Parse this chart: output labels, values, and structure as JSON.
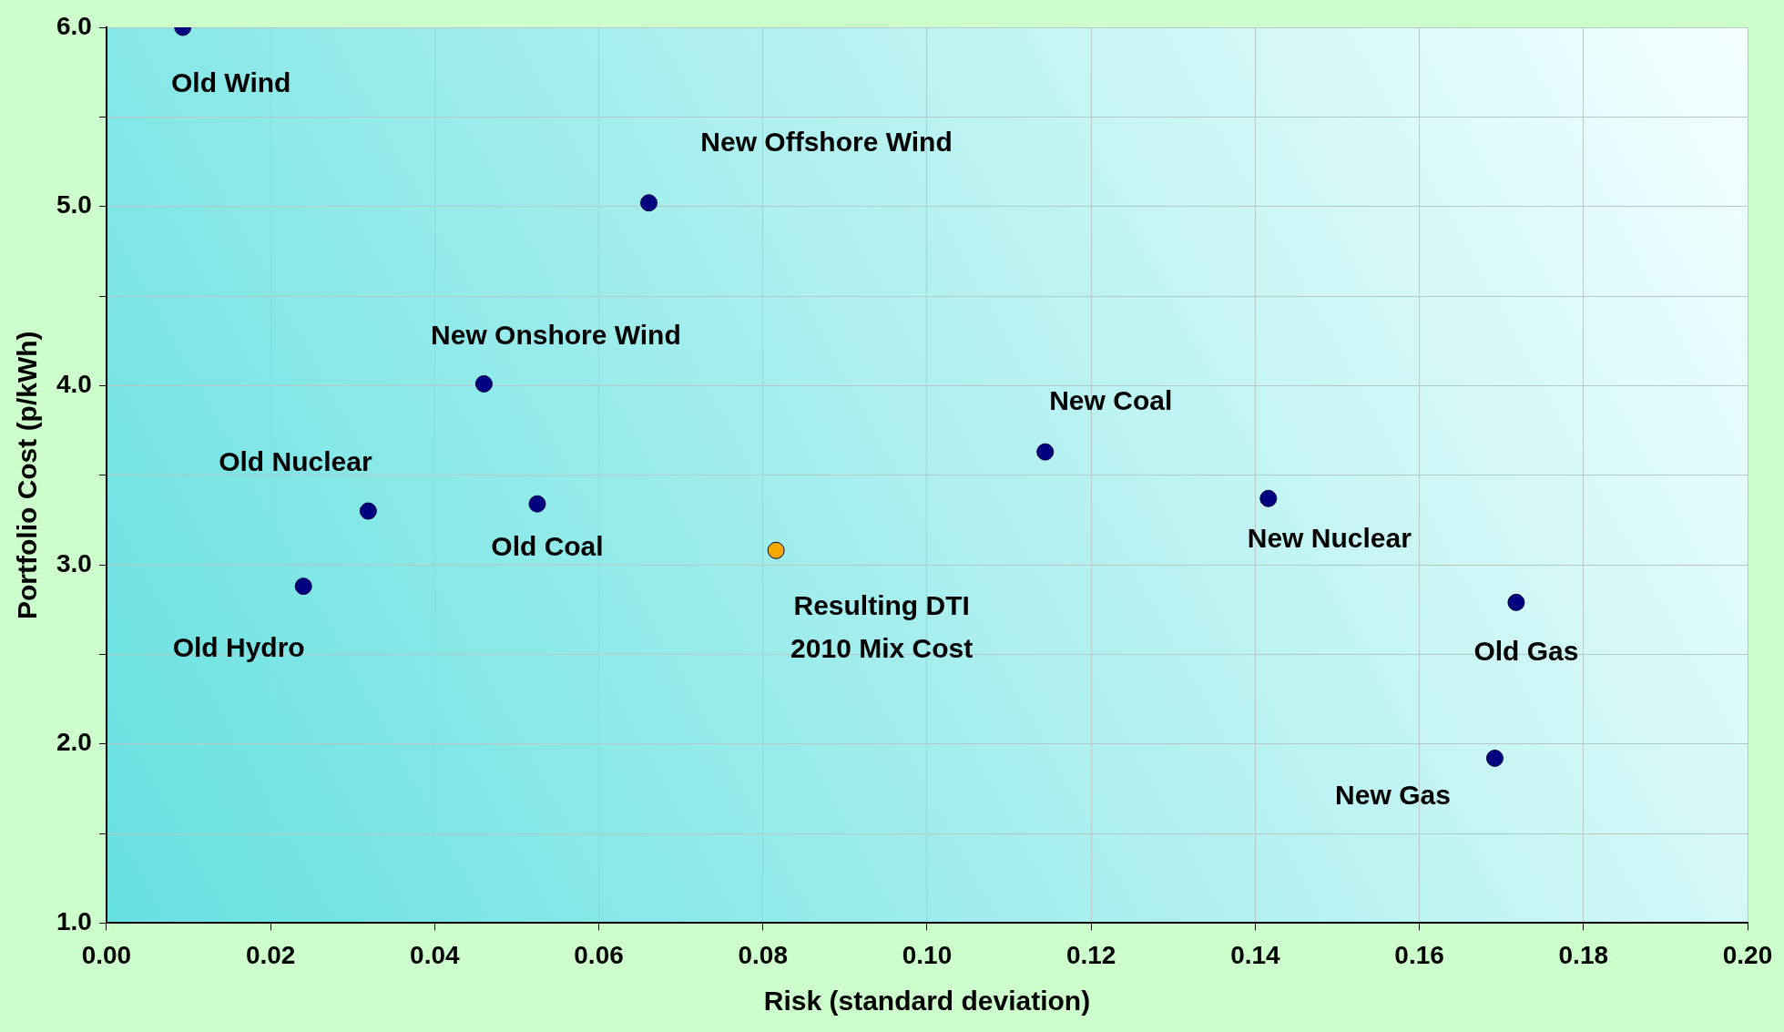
{
  "chart_data": {
    "type": "scatter",
    "xlabel": "Risk (standard deviation)",
    "ylabel": "Portfolio Cost (p/kWh)",
    "series": [
      {
        "color": "#000080",
        "x": [
          0.0093,
          0.0661,
          0.046,
          0.0319,
          0.024,
          0.0525,
          0.1144,
          0.1416,
          0.1718,
          0.1692
        ],
        "values": [
          6.0,
          5.02,
          4.01,
          3.3,
          2.88,
          3.34,
          3.63,
          3.37,
          2.79,
          1.92
        ]
      },
      {
        "color": "#f7a800",
        "x": [
          0.0816
        ],
        "values": [
          3.08
        ]
      }
    ],
    "xlim": [
      0,
      0.2
    ],
    "xticks": [
      {
        "value": 0,
        "label": "0.00"
      },
      {
        "value": 0.02,
        "label": "0.02"
      },
      {
        "value": 0.04,
        "label": "0.04"
      },
      {
        "value": 0.06,
        "label": "0.06"
      },
      {
        "value": 0.08,
        "label": "0.08"
      },
      {
        "value": 0.1,
        "label": "0.10"
      },
      {
        "value": 0.12,
        "label": "0.12"
      },
      {
        "value": 0.14,
        "label": "0.14"
      },
      {
        "value": 0.16,
        "label": "0.16"
      },
      {
        "value": 0.18,
        "label": "0.18"
      },
      {
        "value": 0.2,
        "label": "0.20"
      }
    ],
    "ylim": [
      1,
      6
    ],
    "yticks": [
      {
        "value": 1,
        "label": "1.0"
      },
      {
        "value": 1.5,
        "label": null
      },
      {
        "value": 2,
        "label": "2.0"
      },
      {
        "value": 2.5,
        "label": null
      },
      {
        "value": 3,
        "label": "3.0"
      },
      {
        "value": 3.5,
        "label": null
      },
      {
        "value": 4,
        "label": "4.0"
      },
      {
        "value": 4.5,
        "label": null
      },
      {
        "value": 5,
        "label": "5.0"
      },
      {
        "value": 5.5,
        "label": null
      },
      {
        "value": 6,
        "label": "6.0"
      }
    ],
    "grid": true,
    "marker": "circle",
    "annotations": [
      {
        "text": "Old Wind",
        "x": 0.0093,
        "y": 6.0
      },
      {
        "text": "New Offshore Wind",
        "x": 0.0661,
        "y": 5.02
      },
      {
        "text": "New Onshore Wind",
        "x": 0.046,
        "y": 4.01
      },
      {
        "text": "Old Nuclear",
        "x": 0.0319,
        "y": 3.3
      },
      {
        "text": "Old Hydro",
        "x": 0.024,
        "y": 2.88
      },
      {
        "text": "Old Coal",
        "x": 0.0525,
        "y": 3.34
      },
      {
        "text": "Resulting DTI\n2010 Mix Cost",
        "x": 0.0816,
        "y": 3.08
      },
      {
        "text": "New Coal",
        "x": 0.1144,
        "y": 3.63
      },
      {
        "text": "New Nuclear",
        "x": 0.1416,
        "y": 3.37
      },
      {
        "text": "Old Gas",
        "x": 0.1718,
        "y": 2.79
      },
      {
        "text": "New Gas",
        "x": 0.1692,
        "y": 1.92
      }
    ]
  }
}
